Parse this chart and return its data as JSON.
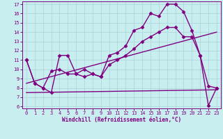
{
  "bg_color": "#c8eef0",
  "line_color": "#800080",
  "grid_color": "#b0d8dc",
  "xlabel": "Windchill (Refroidissement éolien,°C)",
  "xlim": [
    -0.5,
    23.5
  ],
  "ylim": [
    5.8,
    17.3
  ],
  "xticks": [
    0,
    1,
    2,
    3,
    4,
    5,
    6,
    7,
    8,
    9,
    10,
    11,
    12,
    13,
    14,
    15,
    16,
    17,
    18,
    19,
    20,
    21,
    22,
    23
  ],
  "yticks": [
    6,
    7,
    8,
    9,
    10,
    11,
    12,
    13,
    14,
    15,
    16,
    17
  ],
  "series": [
    {
      "x": [
        0,
        1,
        2,
        3,
        4,
        5,
        6,
        7,
        8,
        9,
        10,
        11,
        12,
        13,
        14,
        15,
        16,
        17,
        18,
        19,
        20,
        21,
        22,
        23
      ],
      "y": [
        11,
        8.5,
        8.0,
        7.5,
        11.5,
        11.5,
        9.5,
        10.0,
        9.5,
        9.2,
        11.5,
        11.8,
        12.5,
        14.2,
        14.5,
        16.0,
        15.7,
        17.0,
        17.0,
        16.2,
        14.2,
        11.5,
        6.1,
        8.0
      ],
      "marker": "D",
      "markersize": 2.5,
      "linewidth": 1.0
    },
    {
      "x": [
        0,
        1,
        2,
        3,
        4,
        5,
        6,
        7,
        8,
        9,
        10,
        11,
        12,
        13,
        14,
        15,
        16,
        17,
        18,
        19,
        20,
        21,
        22,
        23
      ],
      "y": [
        11.0,
        8.5,
        8.0,
        9.8,
        10.0,
        9.5,
        9.5,
        9.2,
        9.5,
        9.2,
        10.5,
        11.0,
        11.5,
        12.2,
        13.0,
        13.5,
        14.0,
        14.5,
        14.5,
        13.5,
        13.5,
        11.5,
        8.2,
        8.0
      ],
      "marker": "D",
      "markersize": 2.5,
      "linewidth": 1.0
    },
    {
      "x": [
        0,
        23
      ],
      "y": [
        8.5,
        14.0
      ],
      "marker": null,
      "markersize": 0,
      "linewidth": 1.0
    },
    {
      "x": [
        0,
        23
      ],
      "y": [
        7.5,
        7.8
      ],
      "marker": null,
      "markersize": 0,
      "linewidth": 1.0
    }
  ]
}
